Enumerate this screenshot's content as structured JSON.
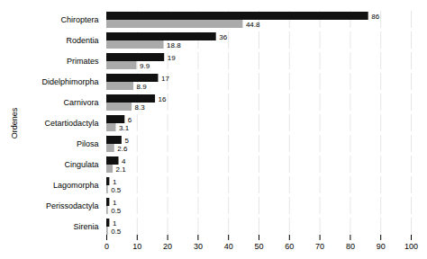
{
  "chart_data": {
    "type": "bar",
    "orientation": "horizontal",
    "categories": [
      "Chiroptera",
      "Rodentia",
      "Primates",
      "Didelphimorpha",
      "Carnivora",
      "Cetartiodactyla",
      "Pilosa",
      "Cingulata",
      "Lagomorpha",
      "Perissodactyla",
      "Sirenia"
    ],
    "series": [
      {
        "color": "#111111",
        "values": [
          86,
          36,
          19,
          17,
          16,
          6,
          5,
          4,
          1,
          1,
          1
        ]
      },
      {
        "color": "#aaaaaa",
        "values": [
          44.8,
          18.8,
          9.9,
          8.9,
          8.3,
          3.1,
          2.6,
          2.1,
          0.5,
          0.5,
          0.5
        ]
      }
    ],
    "ylabel": "Ordenes",
    "xlim": [
      0,
      100
    ],
    "xticks": [
      0,
      10,
      20,
      30,
      40,
      50,
      60,
      70,
      80,
      90,
      100
    ],
    "grid": true,
    "data_labels": true
  }
}
